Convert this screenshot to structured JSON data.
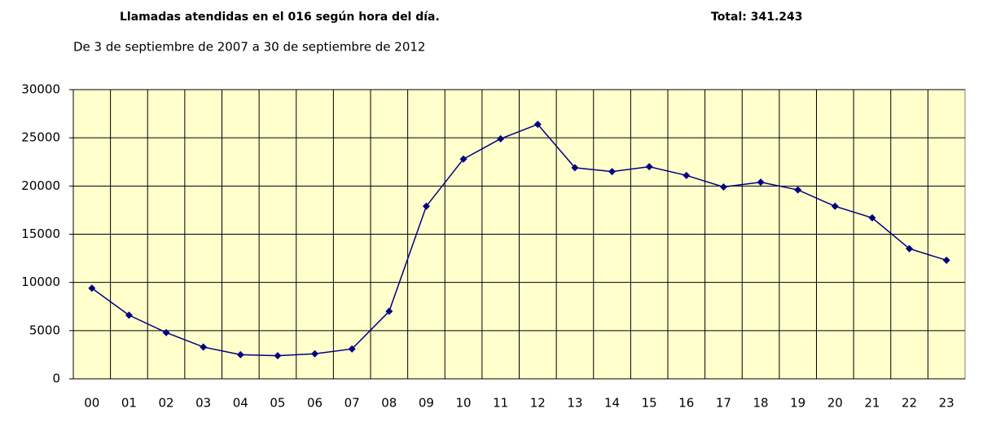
{
  "chart_data": {
    "type": "line",
    "title": "Llamadas atendidas en el 016 según hora del día.",
    "total": "Total: 341.243",
    "subtitle": "De 3 de septiembre de 2007 a 30 de septiembre de 2012",
    "categories": [
      "00",
      "01",
      "02",
      "03",
      "04",
      "05",
      "06",
      "07",
      "08",
      "09",
      "10",
      "11",
      "12",
      "13",
      "14",
      "15",
      "16",
      "17",
      "18",
      "19",
      "20",
      "21",
      "22",
      "23"
    ],
    "series": [
      {
        "color": "#000080",
        "values": [
          9400,
          6600,
          4800,
          3300,
          2500,
          2400,
          2600,
          3100,
          7000,
          17900,
          22800,
          24900,
          26400,
          21900,
          21500,
          22000,
          21100,
          19900,
          20400,
          19600,
          17900,
          16700,
          13500,
          12300
        ]
      }
    ],
    "ylim": [
      0,
      30000
    ],
    "yticks": [
      0,
      5000,
      10000,
      15000,
      20000,
      25000,
      30000
    ],
    "grid": true,
    "plot_background": "#ffffcc"
  }
}
